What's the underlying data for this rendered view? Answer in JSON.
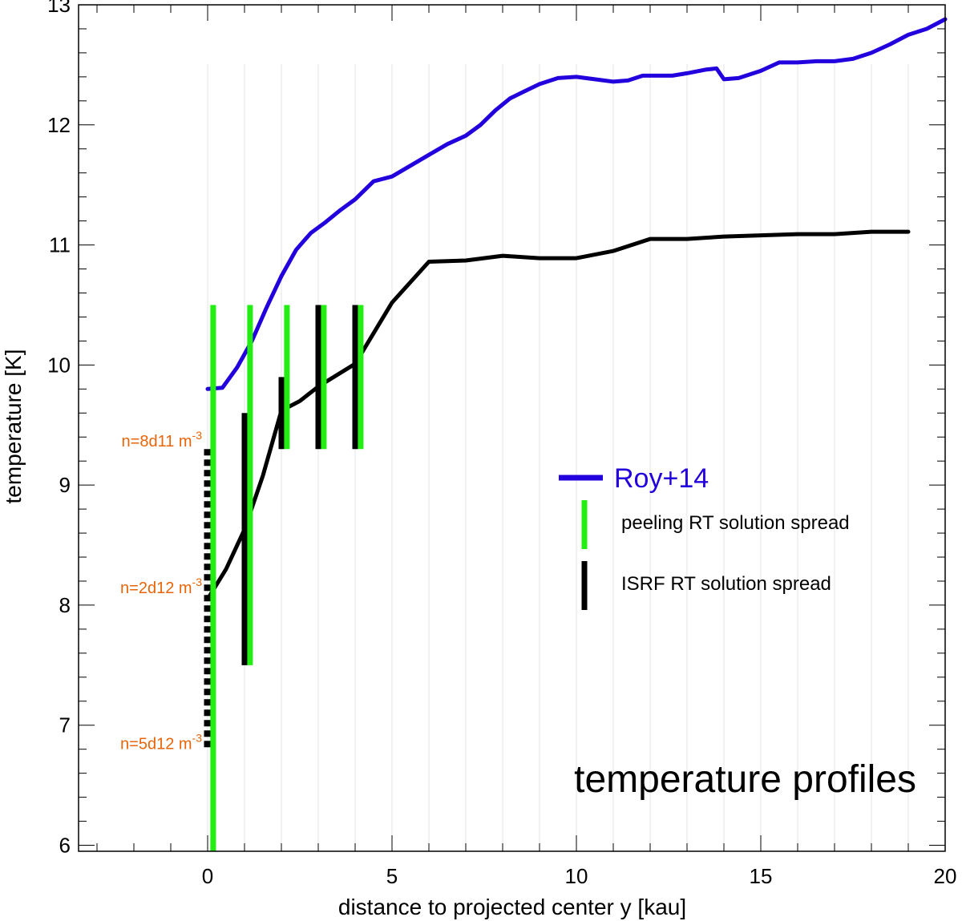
{
  "chart_data": {
    "type": "line",
    "title": "temperature profiles",
    "xlabel": "distance to projected center y [kau]",
    "ylabel": "temperature [K]",
    "xlim": [
      -3.5,
      20
    ],
    "ylim": [
      5.95,
      13
    ],
    "xticks": [
      0,
      5,
      10,
      15,
      20
    ],
    "yticks": [
      6,
      7,
      8,
      9,
      10,
      11,
      12,
      13
    ],
    "grid": "vertical lines at every 1 kau from 0 to 20",
    "series": [
      {
        "name": "Roy+14",
        "color": "#2200dd",
        "x": [
          0,
          0.4,
          0.8,
          1.2,
          1.6,
          2.0,
          2.4,
          2.8,
          3.2,
          3.6,
          4.0,
          4.5,
          5.0,
          5.5,
          6.0,
          6.5,
          7.0,
          7.4,
          7.8,
          8.2,
          8.6,
          9.0,
          9.5,
          10.0,
          10.5,
          11.0,
          11.4,
          11.8,
          12.2,
          12.6,
          13.0,
          13.5,
          13.8,
          14.0,
          14.4,
          15.0,
          15.5,
          16.0,
          16.5,
          17.0,
          17.5,
          18.0,
          18.5,
          19.0,
          19.5,
          20.0
        ],
        "y": [
          9.8,
          9.81,
          9.98,
          10.2,
          10.48,
          10.74,
          10.96,
          11.1,
          11.19,
          11.29,
          11.38,
          11.53,
          11.57,
          11.66,
          11.75,
          11.84,
          11.91,
          12.0,
          12.12,
          12.22,
          12.28,
          12.34,
          12.39,
          12.4,
          12.38,
          12.36,
          12.37,
          12.41,
          12.41,
          12.41,
          12.43,
          12.46,
          12.47,
          12.38,
          12.39,
          12.45,
          12.52,
          12.52,
          12.53,
          12.53,
          12.55,
          12.6,
          12.67,
          12.75,
          12.8,
          12.88
        ]
      },
      {
        "name": "",
        "color": "#000000",
        "x": [
          0,
          0.5,
          1.0,
          1.5,
          2.0,
          2.5,
          3.0,
          4.0,
          5.0,
          6.0,
          7.0,
          8.0,
          9.0,
          10.0,
          11.0,
          12.0,
          13.0,
          14.0,
          15.0,
          16.0,
          17.0,
          18.0,
          19.0
        ],
        "y": [
          8.05,
          8.3,
          8.63,
          9.08,
          9.62,
          9.7,
          9.82,
          10.01,
          10.52,
          10.86,
          10.87,
          10.91,
          10.89,
          10.89,
          10.95,
          11.05,
          11.05,
          11.07,
          11.08,
          11.09,
          11.09,
          11.11,
          11.11
        ]
      }
    ],
    "error_bars": {
      "peeling": {
        "label": "peeling RT solution spread",
        "color": "#22ee11",
        "bars": [
          {
            "x": 0.15,
            "ymin": 5.95,
            "ymax": 10.5
          },
          {
            "x": 1.15,
            "ymin": 7.5,
            "ymax": 10.5
          },
          {
            "x": 2.15,
            "ymin": 9.3,
            "ymax": 10.5
          },
          {
            "x": 3.15,
            "ymin": 9.3,
            "ymax": 10.5
          },
          {
            "x": 4.15,
            "ymin": 9.3,
            "ymax": 10.5
          }
        ]
      },
      "isrf": {
        "label": "ISRF RT solution spread",
        "color": "#000000",
        "bars": [
          {
            "x": 1.0,
            "ymin": 7.5,
            "ymax": 9.6
          },
          {
            "x": 2.0,
            "ymin": 9.3,
            "ymax": 9.9
          },
          {
            "x": 3.0,
            "ymin": 9.3,
            "ymax": 10.5
          },
          {
            "x": 4.0,
            "ymin": 9.3,
            "ymax": 10.5
          }
        ]
      }
    },
    "dashed_segment": {
      "x": 0,
      "ymin": 6.8,
      "ymax": 9.3,
      "color": "#000000"
    },
    "density_annotations": [
      {
        "text": "n=8d11 m",
        "sup": "-3",
        "y": 9.36
      },
      {
        "text": "n=2d12 m",
        "sup": "-3",
        "y": 8.14
      },
      {
        "text": "n=5d12 m",
        "sup": "-3",
        "y": 6.84
      }
    ],
    "legend": {
      "placement": "right-center",
      "entries": [
        {
          "label": "Roy+14",
          "color": "#2200dd",
          "style": "line"
        },
        {
          "label": "peeling RT solution spread",
          "color": "#22ee11",
          "style": "bar"
        },
        {
          "label": "ISRF RT solution spread",
          "color": "#000000",
          "style": "bar"
        }
      ]
    }
  }
}
